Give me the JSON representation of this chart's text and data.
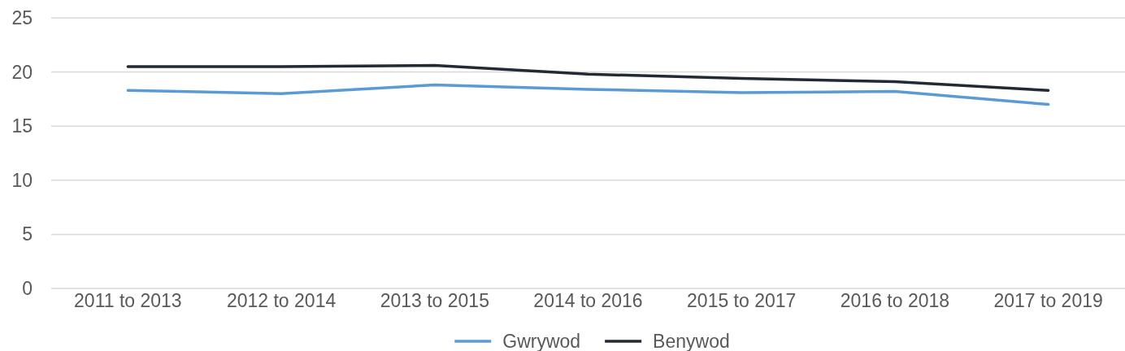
{
  "chart_data": {
    "type": "line",
    "categories": [
      "2011 to 2013",
      "2012 to 2014",
      "2013 to 2015",
      "2014 to 2016",
      "2015 to 2017",
      "2016 to 2018",
      "2017 to 2019"
    ],
    "series": [
      {
        "name": "Gwrywod",
        "color": "#5b9bd5",
        "values": [
          18.3,
          18.0,
          18.8,
          18.4,
          18.1,
          18.2,
          17.0
        ]
      },
      {
        "name": "Benywod",
        "color": "#222a35",
        "values": [
          20.5,
          20.5,
          20.6,
          19.8,
          19.4,
          19.1,
          18.3
        ]
      }
    ],
    "ylim": [
      0,
      25
    ],
    "yticks": [
      0,
      5,
      10,
      15,
      20,
      25
    ],
    "grid": "y",
    "legend": "bottom",
    "marker": "none",
    "line_style": "solid"
  }
}
